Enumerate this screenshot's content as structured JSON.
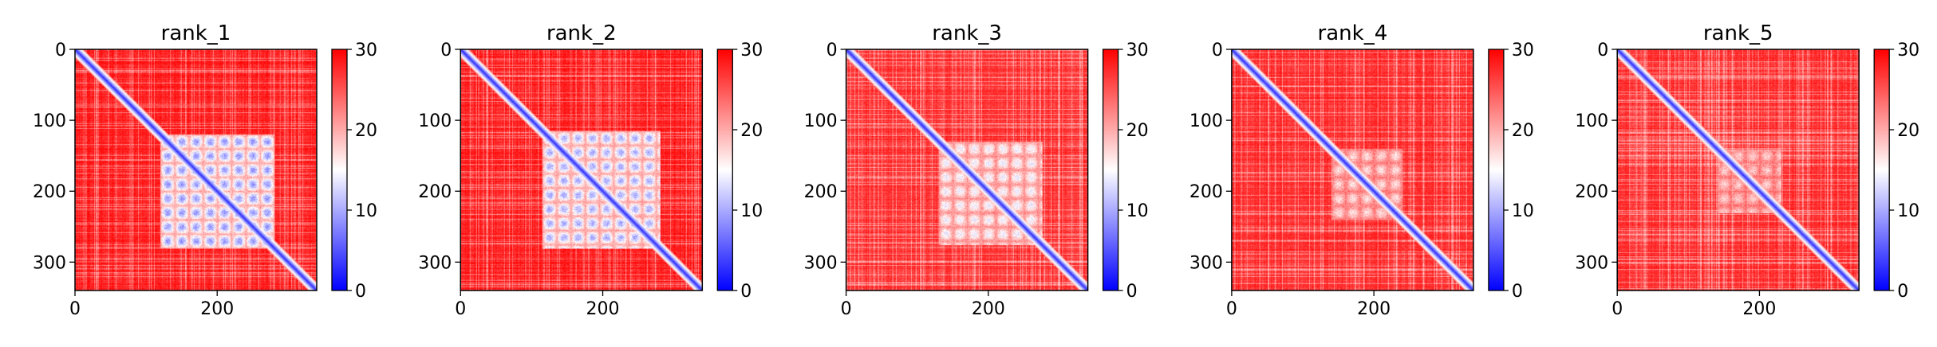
{
  "chart_data": [
    {
      "type": "heatmap",
      "title": "rank_1",
      "x": {
        "ticks": [
          0,
          200
        ],
        "lim": [
          0,
          340
        ]
      },
      "y": {
        "ticks": [
          0,
          100,
          200,
          300
        ],
        "lim": [
          340,
          0
        ]
      },
      "colorbar": {
        "ticks": [
          0,
          10,
          20,
          30
        ],
        "lim": [
          0,
          30
        ],
        "colormap": [
          "#0000ff",
          "#ffffff",
          "#ff0000"
        ]
      },
      "structure": {
        "diagonal_value": 2,
        "background_value": 29,
        "block_range": [
          120,
          280
        ],
        "block_value": 9,
        "grid_spacing": 20
      }
    },
    {
      "type": "heatmap",
      "title": "rank_2",
      "x": {
        "ticks": [
          0,
          200
        ],
        "lim": [
          0,
          340
        ]
      },
      "y": {
        "ticks": [
          0,
          100,
          200,
          300
        ],
        "lim": [
          340,
          0
        ]
      },
      "colorbar": {
        "ticks": [
          0,
          10,
          20,
          30
        ],
        "lim": [
          0,
          30
        ],
        "colormap": [
          "#0000ff",
          "#ffffff",
          "#ff0000"
        ]
      },
      "structure": {
        "diagonal_value": 2,
        "background_value": 29,
        "block_range": [
          115,
          280
        ],
        "block_value": 10,
        "grid_spacing": 20
      }
    },
    {
      "type": "heatmap",
      "title": "rank_3",
      "x": {
        "ticks": [
          0,
          200
        ],
        "lim": [
          0,
          340
        ]
      },
      "y": {
        "ticks": [
          0,
          100,
          200,
          300
        ],
        "lim": [
          340,
          0
        ]
      },
      "colorbar": {
        "ticks": [
          0,
          10,
          20,
          30
        ],
        "lim": [
          0,
          30
        ],
        "colormap": [
          "#0000ff",
          "#ffffff",
          "#ff0000"
        ]
      },
      "structure": {
        "diagonal_value": 2,
        "background_value": 28,
        "block_range": [
          130,
          275
        ],
        "block_value": 14,
        "grid_spacing": 20
      }
    },
    {
      "type": "heatmap",
      "title": "rank_4",
      "x": {
        "ticks": [
          0,
          200
        ],
        "lim": [
          0,
          340
        ]
      },
      "y": {
        "ticks": [
          0,
          100,
          200,
          300
        ],
        "lim": [
          340,
          0
        ]
      },
      "colorbar": {
        "ticks": [
          0,
          10,
          20,
          30
        ],
        "lim": [
          0,
          30
        ],
        "colormap": [
          "#0000ff",
          "#ffffff",
          "#ff0000"
        ]
      },
      "structure": {
        "diagonal_value": 2,
        "background_value": 28,
        "block_range": [
          140,
          240
        ],
        "block_value": 17,
        "grid_spacing": 20
      }
    },
    {
      "type": "heatmap",
      "title": "rank_5",
      "x": {
        "ticks": [
          0,
          200
        ],
        "lim": [
          0,
          340
        ]
      },
      "y": {
        "ticks": [
          0,
          100,
          200,
          300
        ],
        "lim": [
          340,
          0
        ]
      },
      "colorbar": {
        "ticks": [
          0,
          10,
          20,
          30
        ],
        "lim": [
          0,
          30
        ],
        "colormap": [
          "#0000ff",
          "#ffffff",
          "#ff0000"
        ]
      },
      "structure": {
        "diagonal_value": 2,
        "background_value": 28,
        "block_range": [
          140,
          230
        ],
        "block_value": 18,
        "grid_spacing": 20
      }
    }
  ]
}
